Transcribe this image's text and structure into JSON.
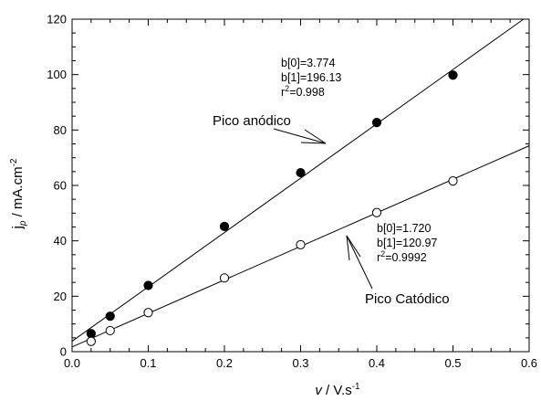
{
  "chart_data": {
    "type": "scatter",
    "title": "",
    "xlim": [
      0.0,
      0.6
    ],
    "ylim": [
      0,
      120
    ],
    "x_ticks": [
      "0.0",
      "0.1",
      "0.2",
      "0.3",
      "0.4",
      "0.5",
      "0.6"
    ],
    "y_ticks": [
      "0",
      "20",
      "40",
      "60",
      "80",
      "100",
      "120"
    ],
    "grid": false,
    "legend": "none",
    "xlabel": {
      "symbol": "v",
      "main": " / V.s",
      "sup": "-1"
    },
    "ylabel": {
      "main": "j",
      "sub": "p",
      "rest": " / mA.cm",
      "sup": "-2"
    },
    "series": [
      {
        "name": "Pico anódico",
        "marker": "filled-circle",
        "x": [
          0.025,
          0.05,
          0.1,
          0.2,
          0.3,
          0.4,
          0.5
        ],
        "y": [
          6.5,
          12.8,
          23.9,
          45.2,
          64.6,
          82.7,
          99.8
        ],
        "fit": {
          "b0": 3.774,
          "b1": 196.13
        },
        "stats": [
          "b[0]=3.774",
          "b[1]=196.13"
        ],
        "r2": {
          "r": "r",
          "sup": "2",
          "rest": "=0.998"
        }
      },
      {
        "name": "Pico Catódico",
        "marker": "open-circle",
        "x": [
          0.025,
          0.05,
          0.1,
          0.2,
          0.3,
          0.4,
          0.5
        ],
        "y": [
          3.7,
          7.6,
          14.1,
          26.6,
          38.6,
          50.2,
          61.6
        ],
        "fit": {
          "b0": 1.72,
          "b1": 120.97
        },
        "stats": [
          "b[0]=1.720",
          "b[1]=120.97"
        ],
        "r2": {
          "r": "r",
          "sup": "2",
          "rest": "=0.9992"
        }
      }
    ]
  }
}
